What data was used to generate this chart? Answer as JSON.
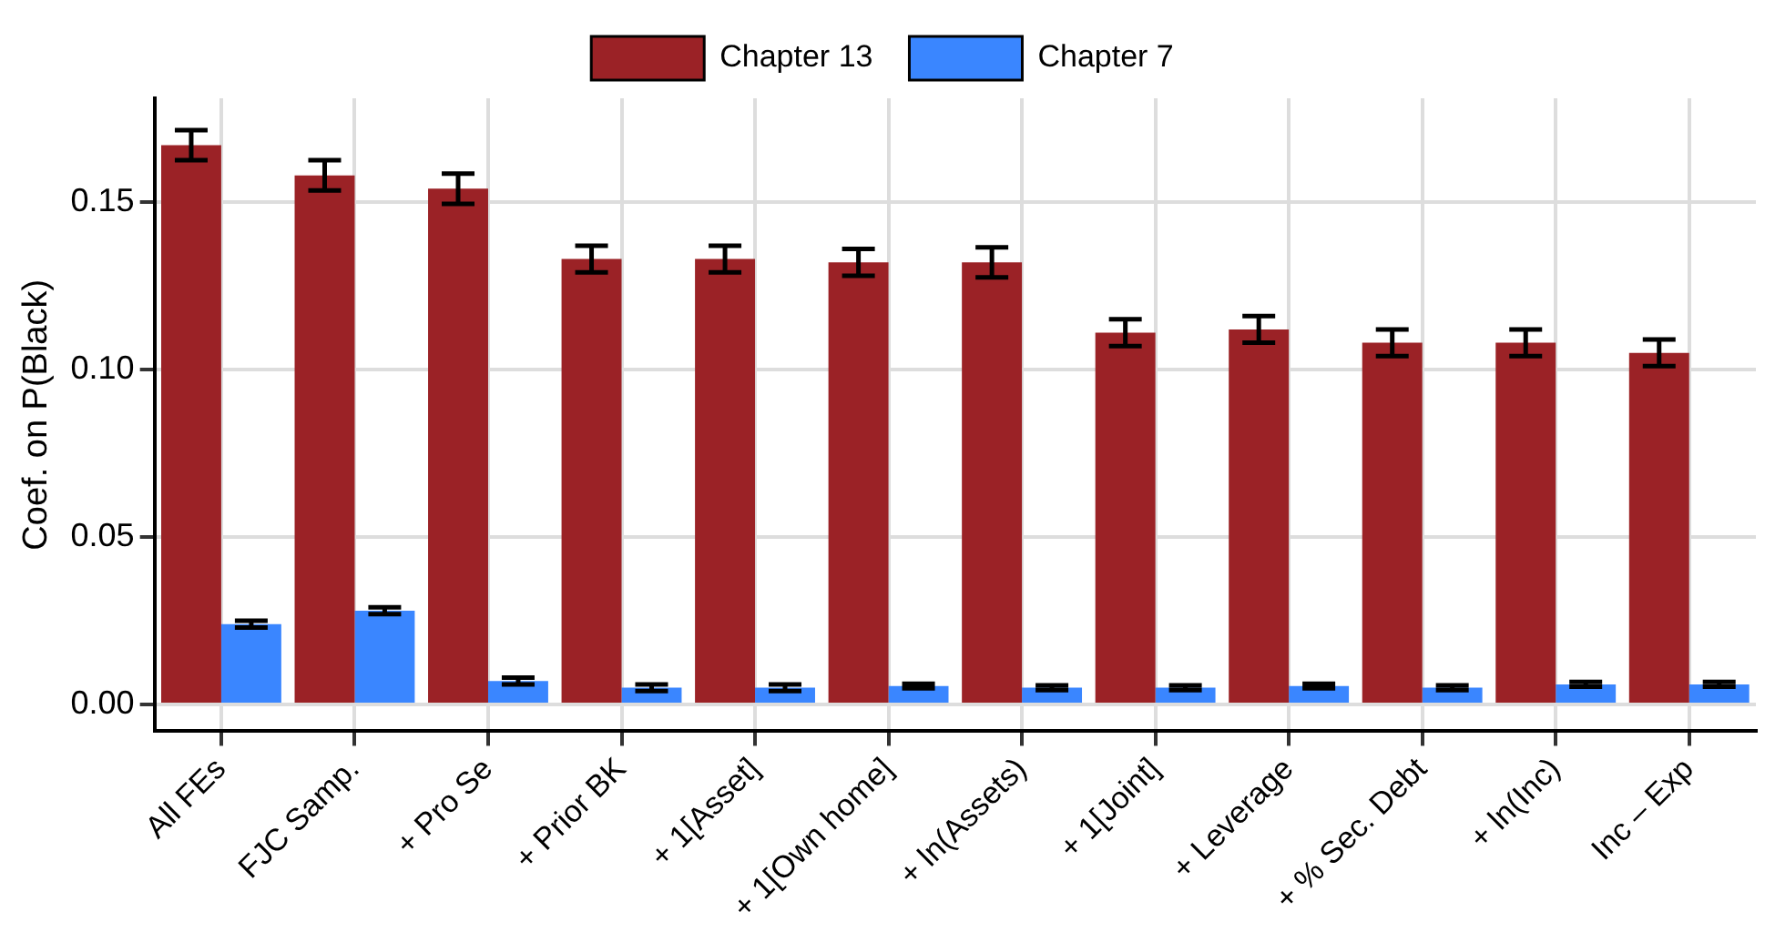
{
  "chart_data": {
    "type": "bar",
    "ylabel": "Coef. on P(Black)",
    "categories": [
      "All FEs",
      "FJC Samp.",
      "+ Pro Se",
      "+ Prior BK",
      "+ 1[Asset]",
      "+ 1[Own home]",
      "+ ln(Assets)",
      "+ 1[Joint]",
      "+ Leverage",
      "+ % Sec. Debt",
      "+ ln(Inc)",
      "Inc – Exp"
    ],
    "series": [
      {
        "name": "Chapter 13",
        "color": "#9b2226",
        "values": [
          0.167,
          0.158,
          0.154,
          0.133,
          0.133,
          0.132,
          0.132,
          0.111,
          0.112,
          0.108,
          0.108,
          0.105
        ],
        "errors": [
          0.0045,
          0.0045,
          0.0045,
          0.004,
          0.004,
          0.004,
          0.0045,
          0.004,
          0.004,
          0.004,
          0.004,
          0.004
        ]
      },
      {
        "name": "Chapter 7",
        "color": "#3a86ff",
        "values": [
          0.024,
          0.028,
          0.007,
          0.005,
          0.005,
          0.0055,
          0.005,
          0.005,
          0.0055,
          0.005,
          0.006,
          0.006
        ],
        "errors": [
          0.001,
          0.001,
          0.001,
          0.001,
          0.001,
          0.0007,
          0.0007,
          0.0007,
          0.0007,
          0.0007,
          0.0007,
          0.0007
        ]
      }
    ],
    "ylim": [
      -0.008,
      0.181
    ],
    "yticks": [
      {
        "value": 0,
        "label": "0.00"
      },
      {
        "value": 0.05,
        "label": "0.05"
      },
      {
        "value": 0.1,
        "label": "0.10"
      },
      {
        "value": 0.15,
        "label": "0.15"
      }
    ],
    "grid": true,
    "legend": "top"
  }
}
